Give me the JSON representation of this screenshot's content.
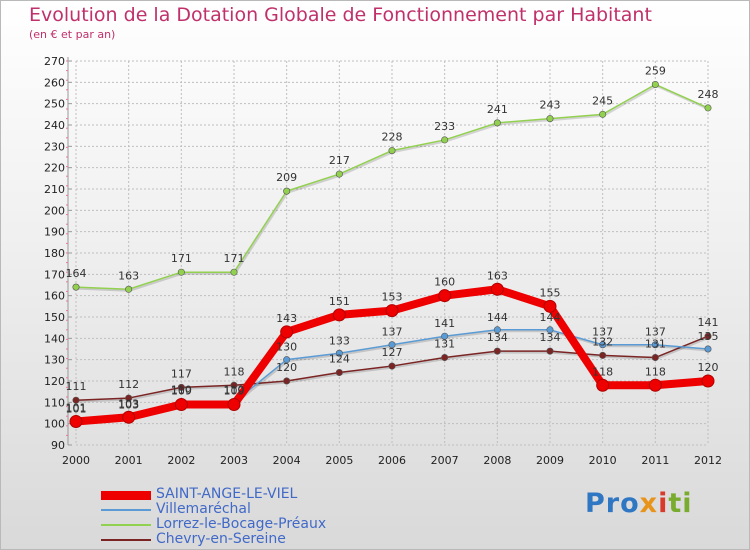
{
  "header": {
    "title": "Evolution de la Dotation Globale de Fonctionnement par Habitant",
    "subtitle": "(en € et par an)"
  },
  "colors": {
    "title": "#c0306b",
    "axis_text": "#222222",
    "grid": "#bfbfbf",
    "legend_text": "#4169c8"
  },
  "chart_data": {
    "type": "line",
    "title": "Evolution de la Dotation Globale de Fonctionnement par Habitant",
    "subtitle": "(en € et par an)",
    "x": [
      "2000",
      "2001",
      "2002",
      "2003",
      "2004",
      "2005",
      "2006",
      "2007",
      "2008",
      "2009",
      "2010",
      "2011",
      "2012"
    ],
    "ylim": [
      90,
      270
    ],
    "ytick_step": 10,
    "grid": true,
    "legend_position": "bottom-left",
    "series": [
      {
        "name": "SAINT-ANGE-LE-VIEL",
        "color": "#ee0000",
        "width": "thick",
        "values": [
          101,
          103,
          109,
          109,
          143,
          151,
          153,
          160,
          163,
          155,
          118,
          118,
          120
        ]
      },
      {
        "name": "Villemaréchal",
        "color": "#5b9bd5",
        "width": "thin",
        "values": [
          101,
          103,
          110,
          110,
          130,
          133,
          137,
          141,
          144,
          144,
          137,
          137,
          135
        ]
      },
      {
        "name": "Lorrez-le-Bocage-Préaux",
        "color": "#92d050",
        "width": "thin",
        "values": [
          164,
          163,
          171,
          171,
          209,
          217,
          228,
          233,
          241,
          243,
          245,
          259,
          248
        ]
      },
      {
        "name": "Chevry-en-Sereine",
        "color": "#7b2424",
        "width": "thin",
        "values": [
          111,
          112,
          117,
          118,
          120,
          124,
          127,
          131,
          134,
          134,
          132,
          131,
          141
        ]
      }
    ]
  },
  "logo": {
    "p1": "Pro",
    "p2": "x",
    "p3": "i",
    "p4": "ti"
  }
}
